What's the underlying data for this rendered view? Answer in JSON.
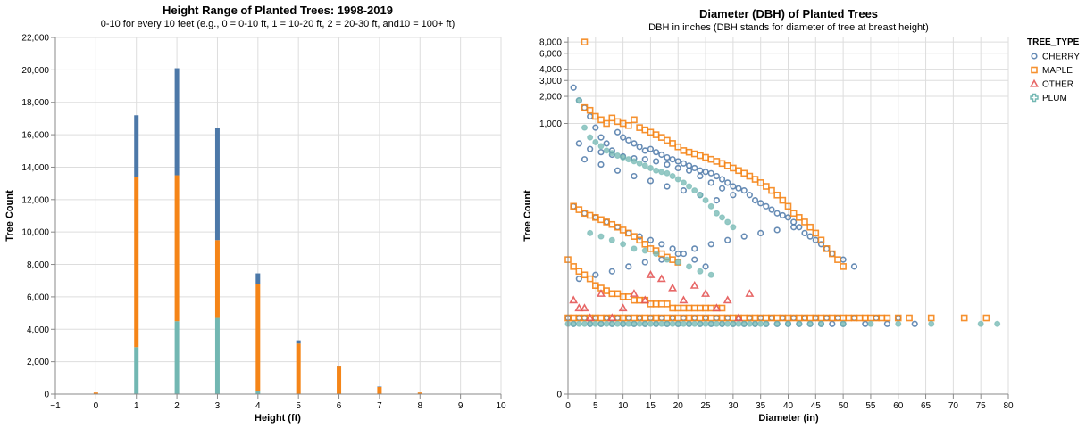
{
  "colors": {
    "CHERRY": "#4c78a8",
    "MAPLE": "#f58518",
    "OTHER": "#e45756",
    "PLUM": "#72b7b2"
  },
  "chart_data": [
    {
      "type": "bar",
      "stacked": true,
      "title": "Height Range of Planted Trees: 1998-2019",
      "subtitle": "0-10 for every 10 feet (e.g., 0 = 0-10 ft, 1 = 10-20 ft, 2 = 20-30 ft, and10 = 100+ ft)",
      "xlabel": "Height (ft)",
      "ylabel": "Tree Count",
      "xlim": [
        -1,
        10
      ],
      "ylim": [
        0,
        22000
      ],
      "x_ticks": [
        "−1",
        "0",
        "1",
        "2",
        "3",
        "4",
        "5",
        "6",
        "7",
        "8",
        "9",
        "10"
      ],
      "y_ticks": [
        "0",
        "2,000",
        "4,000",
        "6,000",
        "8,000",
        "10,000",
        "12,000",
        "14,000",
        "16,000",
        "18,000",
        "20,000",
        "22,000"
      ],
      "grid": true,
      "x": [
        0,
        1,
        2,
        3,
        4,
        5,
        6,
        7,
        8
      ],
      "series": [
        {
          "name": "PLUM",
          "values": [
            20,
            2900,
            4500,
            4700,
            200,
            20,
            0,
            0,
            0
          ]
        },
        {
          "name": "OTHER",
          "values": [
            0,
            0,
            0,
            0,
            0,
            0,
            0,
            0,
            0
          ]
        },
        {
          "name": "MAPLE",
          "values": [
            80,
            10500,
            9000,
            4800,
            6600,
            3100,
            1700,
            450,
            100
          ]
        },
        {
          "name": "CHERRY",
          "values": [
            0,
            3800,
            6600,
            6900,
            650,
            200,
            30,
            20,
            0
          ]
        }
      ]
    },
    {
      "type": "scatter",
      "title": "Diameter (DBH) of Planted Trees",
      "subtitle": "DBH in inches (DBH stands for diameter of tree at breast height)",
      "xlabel": "Diameter (in)",
      "ylabel": "Tree Count",
      "xlim": [
        0,
        80
      ],
      "y_scale": "symlog",
      "ylim": [
        0,
        9000
      ],
      "x_ticks": [
        "0",
        "5",
        "10",
        "15",
        "20",
        "25",
        "30",
        "35",
        "40",
        "45",
        "50",
        "55",
        "60",
        "65",
        "70",
        "75",
        "80"
      ],
      "y_ticks": [
        "0",
        "1,000",
        "2,000",
        "3,000",
        "4,000",
        "6,000",
        "8,000"
      ],
      "y_tick_values": [
        0,
        1000,
        2000,
        3000,
        4000,
        6000,
        8000
      ],
      "legend": {
        "title": "TREE_TYPE",
        "position": "right"
      },
      "series": [
        {
          "name": "CHERRY",
          "shape": "circle",
          "x": [
            0,
            1,
            2,
            3,
            4,
            5,
            6,
            7,
            8,
            9,
            10,
            11,
            12,
            13,
            14,
            15,
            16,
            17,
            18,
            19,
            20,
            21,
            22,
            23,
            24,
            25,
            26,
            27,
            28,
            29,
            30,
            31,
            32,
            33,
            34,
            35,
            36,
            37,
            38,
            39,
            40,
            41,
            42,
            43,
            44,
            45,
            46,
            47,
            48,
            49,
            50,
            52,
            54,
            56,
            58,
            60,
            63,
            1,
            2,
            3,
            4,
            5,
            6,
            7,
            8,
            9,
            10,
            11,
            12,
            13,
            14,
            15,
            16,
            17,
            18,
            19,
            20,
            21,
            22,
            23,
            24,
            25,
            26,
            27,
            28,
            29,
            30,
            31,
            32,
            33,
            34,
            35,
            36,
            37,
            38,
            39,
            40,
            41,
            42,
            43,
            44,
            45,
            46,
            47,
            48,
            50,
            52,
            2,
            4,
            6,
            8,
            10,
            12,
            14,
            16,
            18,
            20,
            22,
            24,
            26,
            28,
            30,
            1,
            3,
            5,
            7,
            9,
            11,
            13,
            15,
            17,
            19,
            21,
            23,
            25,
            3,
            6,
            9,
            12,
            15,
            18,
            21,
            24,
            27,
            2,
            5,
            8,
            11,
            14,
            17,
            20,
            23,
            26,
            29,
            32,
            35,
            38,
            41
          ],
          "y": [
            6,
            5,
            6,
            6,
            5,
            6,
            5,
            6,
            5,
            6,
            5,
            6,
            5,
            6,
            5,
            6,
            5,
            6,
            5,
            6,
            5,
            6,
            5,
            6,
            5,
            6,
            5,
            6,
            5,
            6,
            5,
            6,
            5,
            6,
            5,
            6,
            5,
            6,
            5,
            6,
            5,
            6,
            5,
            6,
            5,
            6,
            5,
            6,
            5,
            6,
            5,
            6,
            5,
            6,
            5,
            6,
            5,
            2500,
            1800,
            1500,
            1200,
            900,
            700,
            600,
            500,
            800,
            700,
            650,
            600,
            550,
            500,
            520,
            480,
            450,
            420,
            400,
            380,
            360,
            340,
            320,
            300,
            290,
            280,
            260,
            240,
            220,
            200,
            190,
            180,
            160,
            140,
            130,
            120,
            110,
            100,
            95,
            90,
            80,
            70,
            60,
            55,
            50,
            45,
            40,
            35,
            30,
            25,
            600,
            520,
            480,
            450,
            430,
            410,
            400,
            380,
            350,
            320,
            300,
            260,
            220,
            190,
            160,
            120,
            100,
            90,
            80,
            70,
            60,
            55,
            50,
            45,
            40,
            35,
            30,
            25,
            400,
            350,
            300,
            260,
            230,
            200,
            180,
            160,
            140,
            18,
            20,
            22,
            25,
            28,
            30,
            35,
            40,
            45,
            50,
            55,
            60,
            65,
            70
          ]
        },
        {
          "name": "MAPLE",
          "shape": "square",
          "x": [
            0,
            1,
            2,
            3,
            4,
            5,
            6,
            7,
            8,
            9,
            10,
            11,
            12,
            13,
            14,
            15,
            16,
            17,
            18,
            19,
            20,
            21,
            22,
            23,
            24,
            25,
            26,
            27,
            28,
            29,
            30,
            31,
            32,
            33,
            34,
            35,
            36,
            37,
            38,
            39,
            40,
            41,
            42,
            43,
            44,
            45,
            46,
            47,
            48,
            49,
            50,
            51,
            52,
            53,
            54,
            55,
            56,
            57,
            58,
            60,
            62,
            66,
            72,
            76,
            3,
            4,
            5,
            6,
            7,
            8,
            9,
            10,
            11,
            12,
            13,
            14,
            15,
            16,
            17,
            18,
            19,
            20,
            21,
            22,
            23,
            24,
            25,
            26,
            27,
            28,
            29,
            30,
            31,
            32,
            33,
            34,
            35,
            36,
            37,
            38,
            39,
            40,
            41,
            42,
            43,
            44,
            45,
            46,
            47,
            48,
            49,
            50,
            0,
            1,
            2,
            3,
            4,
            5,
            6,
            7,
            8,
            9,
            10,
            11,
            12,
            13,
            14,
            15,
            16,
            17,
            18,
            19,
            20,
            21,
            22,
            23,
            24,
            25,
            26,
            27,
            28,
            1,
            2,
            3,
            4,
            5,
            6,
            7,
            8,
            9,
            10,
            11,
            12,
            13,
            14,
            15,
            16,
            17,
            18,
            19,
            20,
            3
          ],
          "y": [
            6,
            6,
            6,
            6,
            6,
            6,
            6,
            6,
            6,
            6,
            6,
            6,
            6,
            6,
            6,
            6,
            6,
            6,
            6,
            6,
            6,
            6,
            6,
            6,
            6,
            6,
            6,
            6,
            6,
            6,
            6,
            6,
            6,
            6,
            6,
            6,
            6,
            6,
            6,
            6,
            6,
            6,
            6,
            6,
            6,
            6,
            6,
            6,
            6,
            6,
            6,
            6,
            6,
            6,
            6,
            6,
            6,
            6,
            6,
            6,
            6,
            6,
            6,
            6,
            1500,
            1400,
            1200,
            1100,
            1000,
            1150,
            1050,
            1000,
            950,
            1100,
            900,
            850,
            800,
            750,
            700,
            650,
            600,
            550,
            500,
            480,
            460,
            440,
            420,
            400,
            380,
            360,
            340,
            320,
            300,
            280,
            260,
            240,
            220,
            200,
            180,
            160,
            140,
            120,
            100,
            90,
            80,
            70,
            60,
            50,
            40,
            35,
            30,
            25,
            30,
            25,
            22,
            20,
            18,
            15,
            14,
            13,
            12,
            12,
            11,
            11,
            10,
            10,
            10,
            9,
            9,
            9,
            9,
            8,
            8,
            8,
            8,
            8,
            8,
            8,
            8,
            8,
            8,
            120,
            110,
            100,
            95,
            90,
            85,
            80,
            75,
            70,
            65,
            60,
            55,
            50,
            45,
            40,
            38,
            35,
            32,
            30,
            28,
            8000
          ]
        },
        {
          "name": "OTHER",
          "shape": "triangle",
          "x": [
            1,
            2,
            3,
            4,
            6,
            8,
            10,
            12,
            14,
            15,
            17,
            19,
            21,
            23,
            25,
            27,
            29,
            31,
            33
          ],
          "y": [
            10,
            8,
            8,
            6,
            12,
            6,
            8,
            12,
            10,
            20,
            18,
            14,
            10,
            15,
            12,
            8,
            10,
            6,
            12
          ]
        },
        {
          "name": "PLUM",
          "shape": "circle-filled",
          "x": [
            0,
            1,
            2,
            3,
            4,
            5,
            6,
            7,
            8,
            9,
            10,
            11,
            12,
            13,
            14,
            15,
            16,
            17,
            18,
            19,
            20,
            21,
            22,
            23,
            24,
            25,
            26,
            27,
            28,
            29,
            30,
            31,
            32,
            33,
            34,
            35,
            36,
            38,
            40,
            42,
            44,
            46,
            50,
            55,
            60,
            66,
            75,
            78,
            2,
            3,
            4,
            5,
            6,
            7,
            8,
            9,
            10,
            11,
            12,
            13,
            14,
            15,
            16,
            17,
            18,
            19,
            20,
            21,
            22,
            23,
            24,
            25,
            26,
            27,
            28,
            29,
            30,
            4,
            6,
            8,
            10,
            12,
            14,
            16,
            18,
            20,
            22,
            24,
            26
          ],
          "y": [
            5,
            5,
            5,
            5,
            5,
            5,
            5,
            5,
            5,
            5,
            5,
            5,
            5,
            5,
            5,
            5,
            5,
            5,
            5,
            5,
            5,
            5,
            5,
            5,
            5,
            5,
            5,
            5,
            5,
            5,
            5,
            5,
            5,
            5,
            5,
            5,
            5,
            5,
            5,
            5,
            5,
            5,
            5,
            5,
            5,
            5,
            5,
            5,
            1800,
            900,
            700,
            620,
            560,
            500,
            470,
            440,
            420,
            400,
            380,
            360,
            340,
            320,
            300,
            290,
            280,
            260,
            240,
            220,
            200,
            180,
            160,
            140,
            120,
            100,
            90,
            80,
            70,
            60,
            55,
            50,
            45,
            40,
            38,
            35,
            30,
            28,
            25,
            22,
            20
          ]
        }
      ]
    }
  ]
}
